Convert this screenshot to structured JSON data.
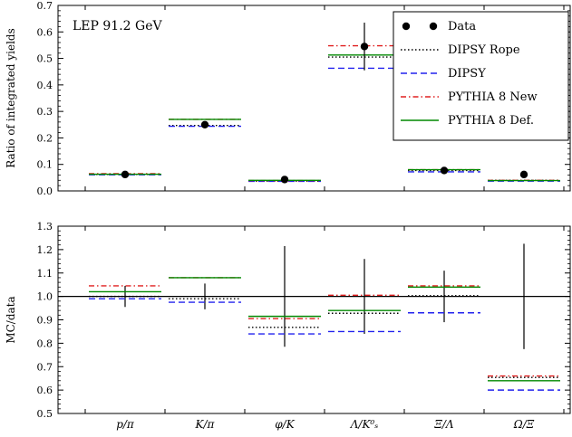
{
  "chart_data": [
    {
      "type": "scatter",
      "panel": "top",
      "title": "LEP 91.2 GeV",
      "xlabel": "",
      "ylabel": "Ratio of integrated yields",
      "ylim": [
        0,
        0.7
      ],
      "yticks": [
        "0.0",
        "0.1",
        "0.2",
        "0.3",
        "0.4",
        "0.5",
        "0.6",
        "0.7"
      ],
      "categories": [
        "p/π",
        "K/π",
        "φ/K",
        "Λ/K⁰ₛ",
        "Ξ/Λ",
        "Ω/Ξ"
      ],
      "data": {
        "name": "Data",
        "values": [
          0.062,
          0.25,
          0.043,
          0.545,
          0.077,
          0.062
        ],
        "errors": [
          0.004,
          0.01,
          0.004,
          0.09,
          0.006,
          0.009
        ]
      },
      "series": [
        {
          "name": "DIPSY Rope",
          "color": "#000000",
          "style": "dotted",
          "values": [
            0.062,
            0.247,
            0.037,
            0.505,
            0.077,
            0.04
          ]
        },
        {
          "name": "DIPSY",
          "color": "#2222ee",
          "style": "dashed",
          "values": [
            0.061,
            0.244,
            0.036,
            0.463,
            0.072,
            0.037
          ]
        },
        {
          "name": "PYTHIA 8 New",
          "color": "#e02020",
          "style": "dashdot",
          "values": [
            0.065,
            0.27,
            0.039,
            0.548,
            0.08,
            0.04
          ]
        },
        {
          "name": "PYTHIA 8 Def.",
          "color": "#008800",
          "style": "solid",
          "values": [
            0.063,
            0.27,
            0.04,
            0.513,
            0.08,
            0.039
          ]
        }
      ],
      "legend": {
        "placement": "top-right"
      }
    },
    {
      "type": "scatter",
      "panel": "bottom",
      "xlabel": "",
      "ylabel": "MC/data",
      "ylim": [
        0.5,
        1.3
      ],
      "yticks": [
        "0.5",
        "0.6",
        "0.7",
        "0.8",
        "0.9",
        "1.0",
        "1.1",
        "1.2",
        "1.3"
      ],
      "categories": [
        "p/π",
        "K/π",
        "φ/K",
        "Λ/K⁰ₛ",
        "Ξ/Λ",
        "Ω/Ξ"
      ],
      "reference_line": 1.0,
      "data_error_band": {
        "low": [
          0.955,
          0.945,
          0.785,
          0.84,
          0.89,
          0.775
        ],
        "high": [
          1.045,
          1.055,
          1.215,
          1.16,
          1.11,
          1.225
        ]
      },
      "series": [
        {
          "name": "DIPSY Rope",
          "color": "#000000",
          "style": "dotted",
          "values": [
            1.0,
            0.99,
            0.868,
            0.928,
            1.003,
            0.654
          ]
        },
        {
          "name": "DIPSY",
          "color": "#2222ee",
          "style": "dashed",
          "values": [
            0.99,
            0.975,
            0.84,
            0.85,
            0.93,
            0.6
          ]
        },
        {
          "name": "PYTHIA 8 New",
          "color": "#e02020",
          "style": "dashdot",
          "values": [
            1.045,
            1.08,
            0.905,
            1.005,
            1.045,
            0.66
          ]
        },
        {
          "name": "PYTHIA 8 Def.",
          "color": "#008800",
          "style": "solid",
          "values": [
            1.02,
            1.08,
            0.915,
            0.94,
            1.04,
            0.64
          ]
        }
      ]
    }
  ]
}
